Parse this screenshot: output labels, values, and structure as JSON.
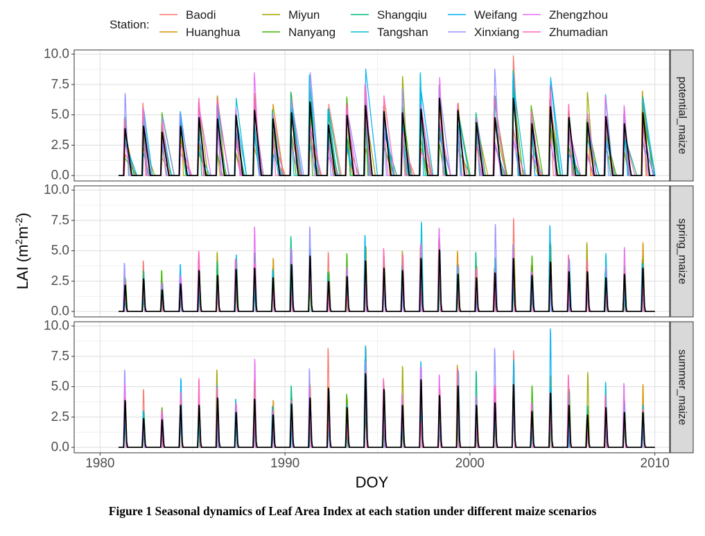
{
  "chart_data": {
    "type": "line",
    "ylabel_base": "LAI (m",
    "ylabel_sup1": "2",
    "ylabel_mid": "m",
    "ylabel_sup2": "-2",
    "ylabel_end": ")",
    "xlabel": "DOY",
    "caption": "Figure 1  Seasonal dynamics of Leaf Area Index at each station under different maize scenarios",
    "legend_title": "Station:",
    "xlim": [
      1978.6,
      2010.8
    ],
    "ylim": [
      -0.45,
      10.35
    ],
    "x_ticks": [
      1980,
      1990,
      2000,
      2010
    ],
    "x_tick_labels": [
      "1980",
      "1990",
      "2000",
      "2010"
    ],
    "y_ticks": [
      0,
      2.5,
      5,
      7.5,
      10
    ],
    "y_tick_labels": [
      "0.0",
      "2.5",
      "5.0",
      "7.5",
      "10.0"
    ],
    "grid": true,
    "legend_position": "top",
    "stations": [
      {
        "name": "Baodi",
        "color": "#F8766D"
      },
      {
        "name": "Huanghua",
        "color": "#D89000"
      },
      {
        "name": "Miyun",
        "color": "#A3A500"
      },
      {
        "name": "Nanyang",
        "color": "#39B600"
      },
      {
        "name": "Shangqiu",
        "color": "#00BF7D"
      },
      {
        "name": "Tangshan",
        "color": "#00BCD8"
      },
      {
        "name": "Weifang",
        "color": "#00B0F6"
      },
      {
        "name": "Xinxiang",
        "color": "#9590FF"
      },
      {
        "name": "Zhengzhou",
        "color": "#E76BF3"
      },
      {
        "name": "Zhumadian",
        "color": "#FF62BC"
      }
    ],
    "mean_series_color": "#000000",
    "years": [
      1981,
      1982,
      1983,
      1984,
      1985,
      1986,
      1987,
      1988,
      1989,
      1990,
      1991,
      1992,
      1993,
      1994,
      1995,
      1996,
      1997,
      1998,
      1999,
      2000,
      2001,
      2002,
      2003,
      2004,
      2005,
      2006,
      2007,
      2008,
      2009
    ],
    "panels": [
      {
        "name": "potential_maize",
        "mean_peaks": [
          3.9,
          4.1,
          3.6,
          4.1,
          4.8,
          4.7,
          5.0,
          5.4,
          4.7,
          5.2,
          6.1,
          4.2,
          5.0,
          5.8,
          5.3,
          5.2,
          5.5,
          6.4,
          5.4,
          4.4,
          4.8,
          6.4,
          4.3,
          5.7,
          4.8,
          4.4,
          4.9,
          4.3,
          5.2
        ],
        "max_peaks": [
          6.8,
          6.0,
          5.2,
          5.3,
          6.4,
          6.6,
          6.4,
          8.5,
          5.9,
          6.9,
          8.5,
          5.9,
          6.5,
          8.8,
          6.6,
          8.2,
          8.5,
          8.1,
          6.0,
          5.2,
          8.8,
          9.9,
          5.8,
          8.1,
          5.9,
          6.9,
          6.7,
          5.8,
          7.0
        ]
      },
      {
        "name": "spring_maize",
        "mean_peaks": [
          2.2,
          2.7,
          1.8,
          2.3,
          3.4,
          3.0,
          3.5,
          3.6,
          2.8,
          3.9,
          4.6,
          2.5,
          2.9,
          4.2,
          3.6,
          3.4,
          4.4,
          5.1,
          3.1,
          2.8,
          3.2,
          4.4,
          3.0,
          4.1,
          3.3,
          3.3,
          2.8,
          3.1,
          3.6
        ],
        "max_peaks": [
          4.0,
          4.2,
          3.4,
          3.9,
          5.0,
          4.9,
          4.7,
          7.0,
          4.4,
          6.2,
          7.0,
          4.9,
          4.8,
          6.3,
          5.2,
          5.0,
          7.4,
          6.9,
          5.0,
          4.9,
          7.2,
          7.7,
          4.6,
          7.1,
          4.7,
          5.7,
          4.8,
          5.3,
          5.7
        ]
      },
      {
        "name": "summer_maize",
        "mean_peaks": [
          3.9,
          2.4,
          2.3,
          3.5,
          3.5,
          4.1,
          2.9,
          4.0,
          2.7,
          3.6,
          4.1,
          4.9,
          3.3,
          6.1,
          4.8,
          3.5,
          5.6,
          4.3,
          5.1,
          3.5,
          3.7,
          5.2,
          3.0,
          4.5,
          3.5,
          2.7,
          3.3,
          2.9,
          2.9
        ],
        "max_peaks": [
          6.4,
          4.8,
          3.3,
          5.7,
          5.7,
          6.4,
          4.0,
          7.3,
          3.9,
          5.1,
          6.5,
          8.2,
          4.4,
          8.4,
          5.7,
          6.7,
          7.1,
          6.0,
          6.8,
          6.3,
          8.2,
          8.0,
          5.1,
          9.8,
          6.0,
          6.2,
          5.4,
          5.3,
          5.2
        ]
      }
    ]
  }
}
